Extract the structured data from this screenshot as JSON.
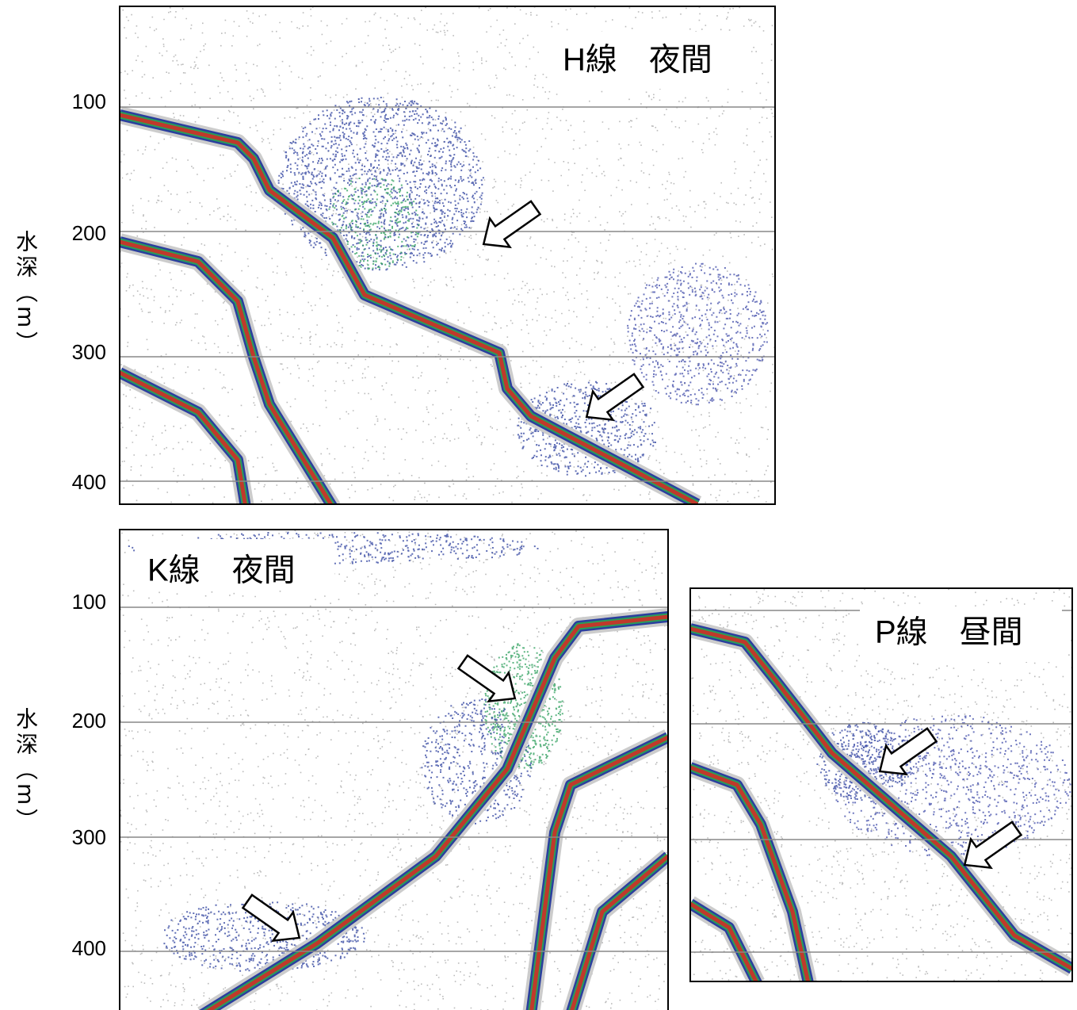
{
  "panels": [
    {
      "label": "H線　夜間",
      "y_axis_label": "水深（m）",
      "ticks": [
        100,
        200,
        300,
        400
      ]
    },
    {
      "label": "K線　夜間",
      "y_axis_label": "水深（m）",
      "ticks": [
        100,
        200,
        300,
        400
      ]
    },
    {
      "label": "P線　昼間"
    }
  ]
}
